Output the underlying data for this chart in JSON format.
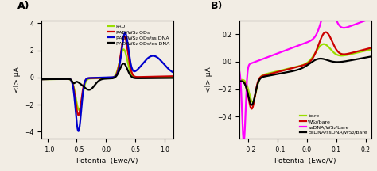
{
  "panel_A": {
    "title": "A)",
    "xlabel": "Potential (Ewe/V)",
    "ylabel": "<I> μA",
    "xlim": [
      -1.1,
      1.15
    ],
    "ylim": [
      -4.5,
      4.2
    ],
    "yticks": [
      -4,
      -2,
      0,
      2,
      4
    ],
    "xticks": [
      -1.0,
      -0.5,
      0.0,
      0.5,
      1.0
    ],
    "curves": [
      {
        "label": "PAD",
        "color": "#99dd00",
        "lw": 1.6
      },
      {
        "label": "PAD/WS₂ QDs",
        "color": "#cc0000",
        "lw": 1.6
      },
      {
        "label": "PAD/WS₂ QDs/ss DNA",
        "color": "#0000cc",
        "lw": 1.6
      },
      {
        "label": "PAD/WS₂ QDs/ds DNA",
        "color": "#000000",
        "lw": 1.6
      }
    ]
  },
  "panel_B": {
    "title": "B)",
    "xlabel": "Potential (Ewe/V)",
    "ylabel": "<I> μA",
    "xlim": [
      -0.23,
      0.22
    ],
    "ylim": [
      -0.56,
      0.3
    ],
    "yticks": [
      -0.4,
      -0.2,
      0.0,
      0.2
    ],
    "xticks": [
      -0.2,
      -0.1,
      0.0,
      0.1,
      0.2
    ],
    "curves": [
      {
        "label": "bare",
        "color": "#99dd00",
        "lw": 1.6
      },
      {
        "label": "WS₂/bare",
        "color": "#cc0000",
        "lw": 1.6
      },
      {
        "label": "ssDNA/WS₂/bare",
        "color": "#ff00ff",
        "lw": 1.6
      },
      {
        "label": "dsDNA/ssDNA/WS₂/bare",
        "color": "#000000",
        "lw": 1.6
      }
    ]
  },
  "background_color": "#f2ede4"
}
